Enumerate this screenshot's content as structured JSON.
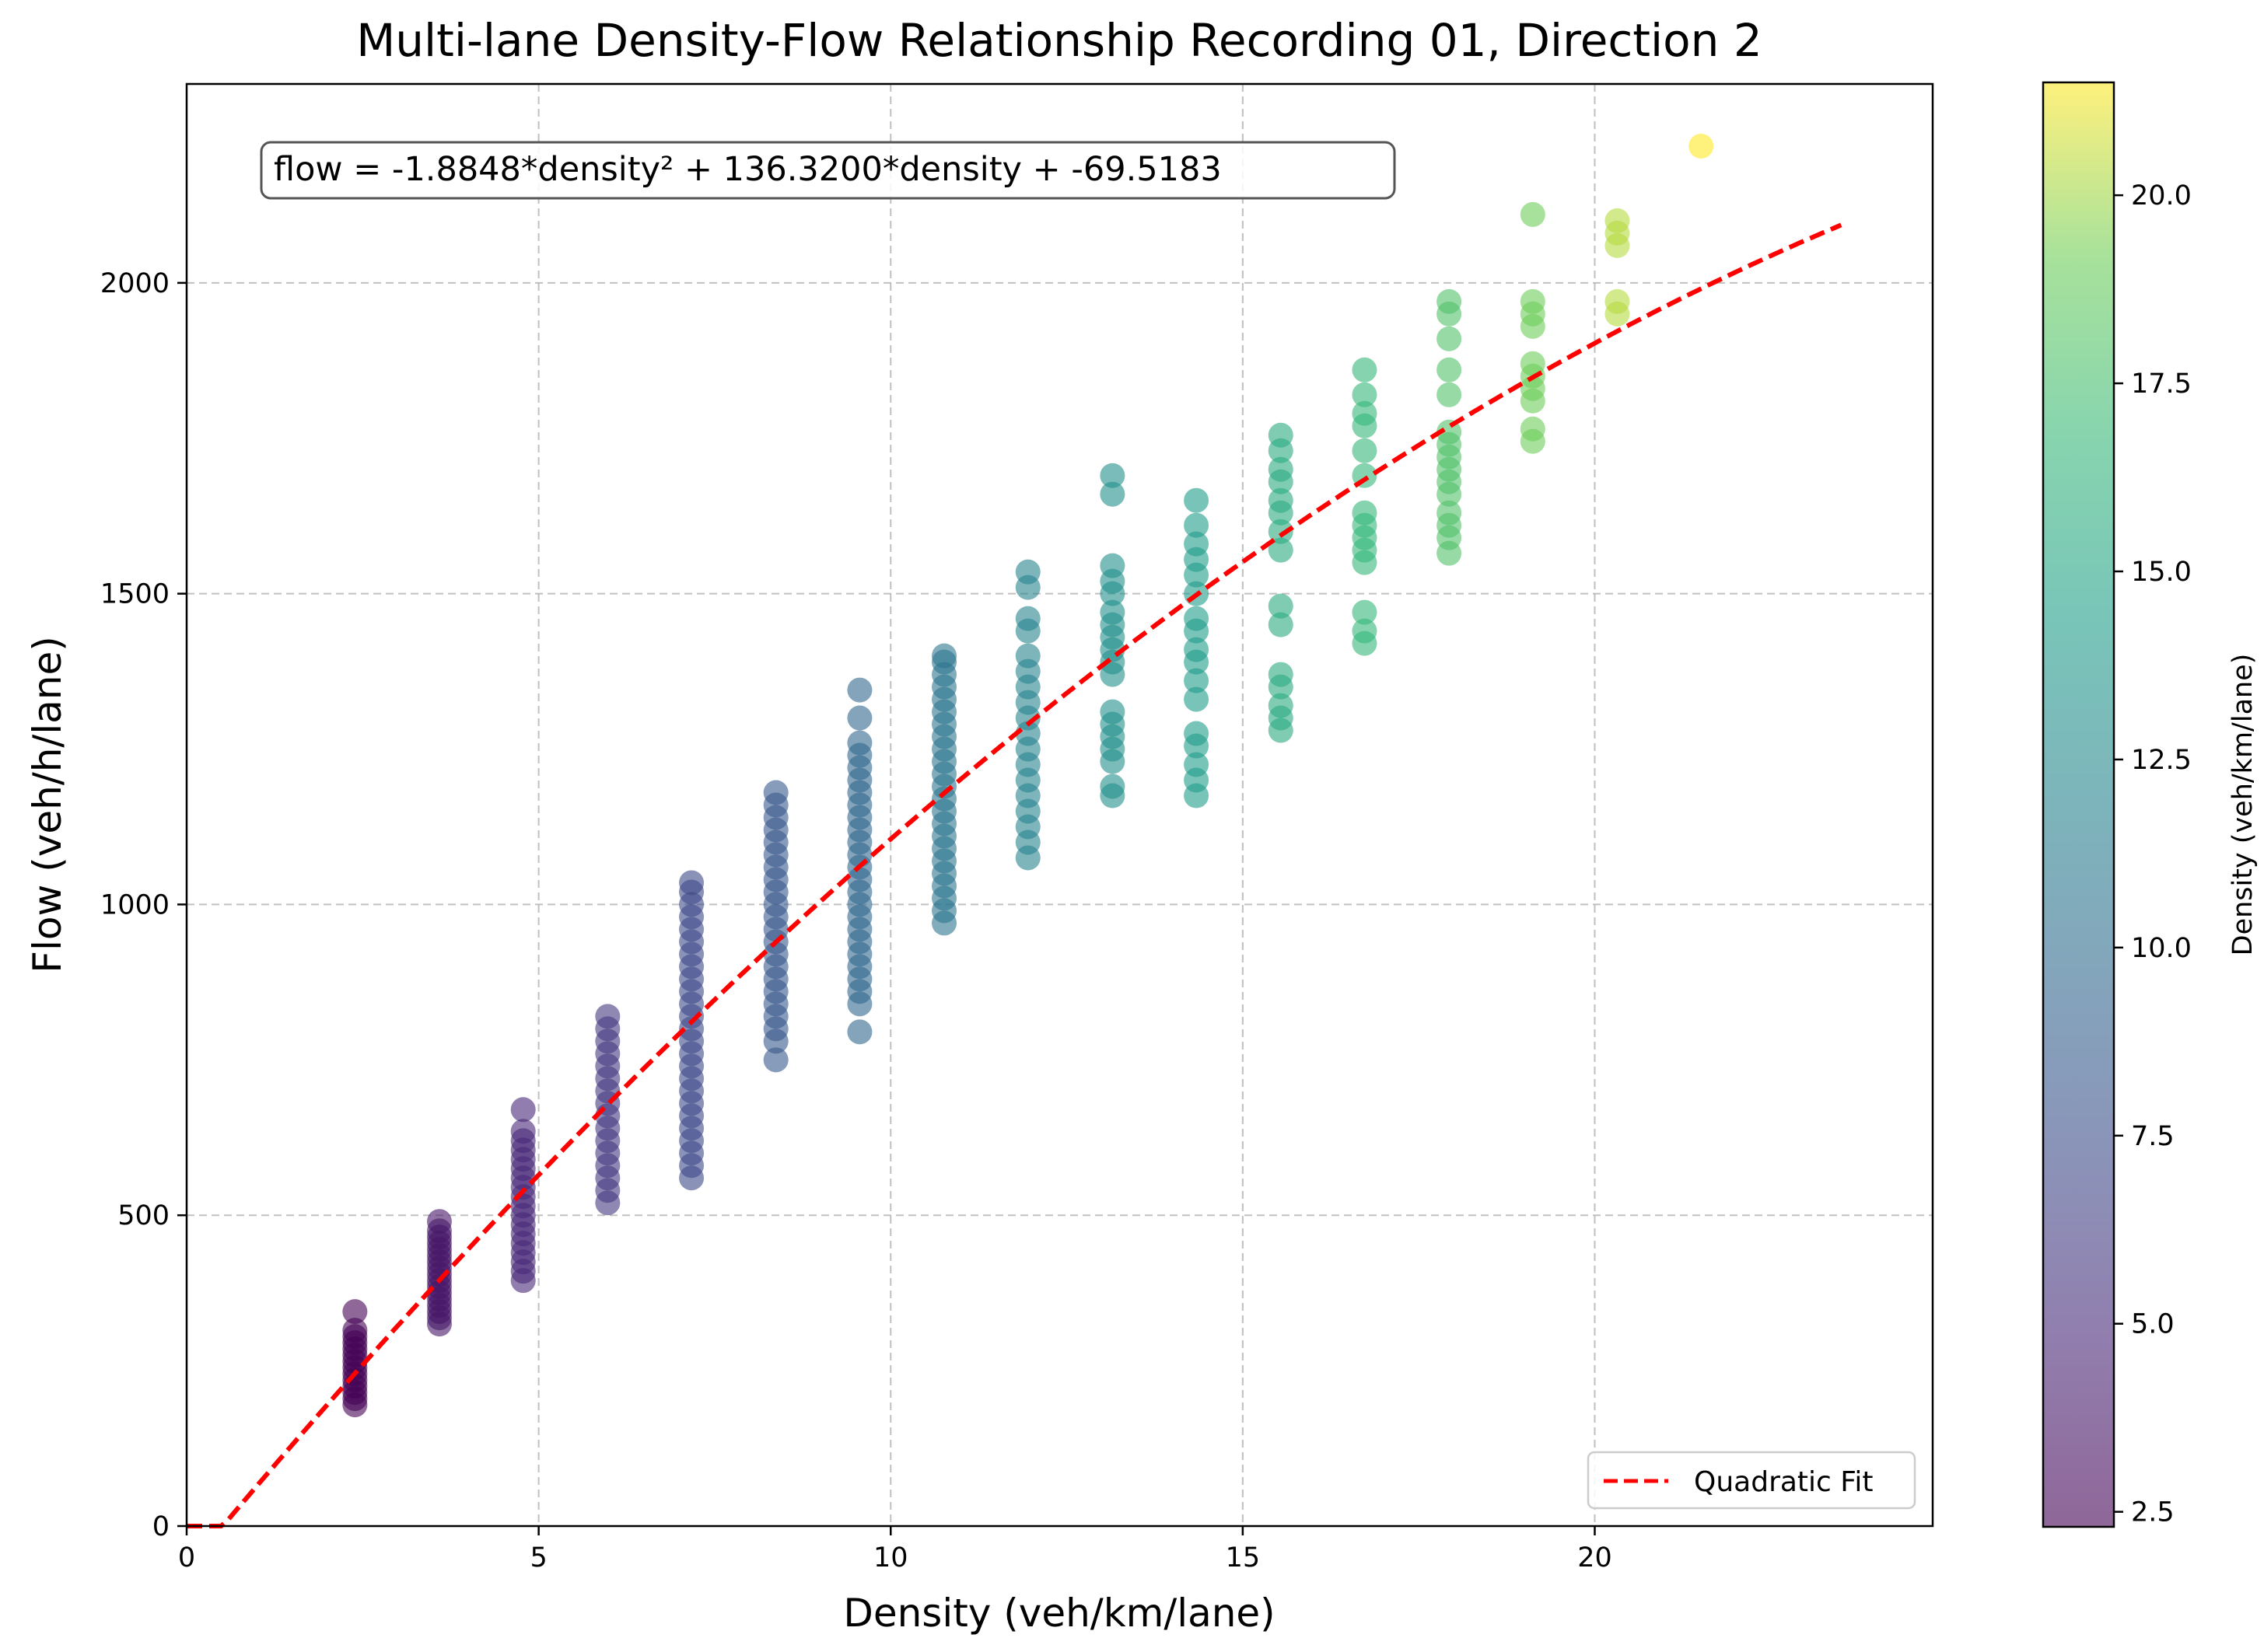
{
  "chart_data": {
    "type": "scatter",
    "title": "Multi-lane Density-Flow Relationship Recording 01, Direction 2",
    "xlabel": "Density (veh/km/lane)",
    "ylabel": "Flow (veh/h/lane)",
    "xlim": [
      0,
      24.8
    ],
    "ylim": [
      0,
      2320
    ],
    "xticks": [
      0,
      5,
      10,
      15,
      20
    ],
    "xtick_labels": [
      "0",
      "5",
      "10",
      "15",
      "20"
    ],
    "yticks": [
      0,
      500,
      1000,
      1500,
      2000
    ],
    "ytick_labels": [
      "0",
      "500",
      "1000",
      "1500",
      "2000"
    ],
    "grid": true,
    "annotation": "flow = -1.8848*density² + 136.3200*density + -69.5183",
    "legend": {
      "position": "lower right",
      "entries": [
        "Quadratic Fit"
      ]
    },
    "colorbar": {
      "label": "Density (veh/km/lane)",
      "min": 2.3,
      "max": 21.5,
      "ticks": [
        2.5,
        5.0,
        7.5,
        10.0,
        12.5,
        15.0,
        17.5,
        20.0
      ],
      "tick_labels": [
        "2.5",
        "5.0",
        "7.5",
        "10.0",
        "12.5",
        "15.0",
        "17.5",
        "20.0"
      ],
      "colormap": "viridis",
      "alpha": 0.6
    },
    "fit": {
      "name": "Quadratic Fit",
      "a": -1.8848,
      "b": 136.32,
      "c": -69.5183,
      "x_range": [
        0,
        23.5
      ],
      "color": "#ff0000",
      "style": "dashed"
    },
    "series": [
      {
        "x": 2.39,
        "y": [
          195,
          205,
          215,
          225,
          235,
          245,
          255,
          265,
          275,
          285,
          295,
          305,
          315,
          345
        ]
      },
      {
        "x": 3.59,
        "y": [
          325,
          335,
          345,
          355,
          365,
          375,
          385,
          395,
          405,
          415,
          425,
          435,
          445,
          455,
          465,
          475,
          490
        ]
      },
      {
        "x": 4.78,
        "y": [
          395,
          410,
          425,
          440,
          455,
          470,
          485,
          500,
          515,
          530,
          545,
          560,
          575,
          590,
          605,
          620,
          635,
          670
        ]
      },
      {
        "x": 5.98,
        "y": [
          520,
          540,
          560,
          580,
          600,
          620,
          640,
          660,
          680,
          700,
          720,
          740,
          760,
          780,
          800,
          820
        ]
      },
      {
        "x": 7.17,
        "y": [
          560,
          580,
          600,
          620,
          640,
          660,
          680,
          700,
          720,
          740,
          760,
          780,
          800,
          820,
          840,
          860,
          880,
          900,
          920,
          940,
          960,
          980,
          1000,
          1020,
          1035
        ]
      },
      {
        "x": 8.37,
        "y": [
          750,
          780,
          800,
          820,
          840,
          860,
          880,
          900,
          920,
          940,
          960,
          980,
          1000,
          1020,
          1040,
          1060,
          1080,
          1100,
          1120,
          1140,
          1160,
          1180
        ]
      },
      {
        "x": 9.56,
        "y": [
          795,
          840,
          860,
          880,
          900,
          920,
          940,
          960,
          980,
          1000,
          1020,
          1040,
          1060,
          1080,
          1100,
          1120,
          1140,
          1160,
          1180,
          1200,
          1220,
          1240,
          1260,
          1300,
          1345
        ]
      },
      {
        "x": 10.76,
        "y": [
          970,
          990,
          1010,
          1030,
          1050,
          1070,
          1090,
          1110,
          1130,
          1150,
          1170,
          1190,
          1210,
          1230,
          1250,
          1270,
          1290,
          1310,
          1330,
          1350,
          1370,
          1390,
          1400
        ]
      },
      {
        "x": 11.95,
        "y": [
          1075,
          1100,
          1125,
          1150,
          1175,
          1200,
          1225,
          1250,
          1275,
          1300,
          1325,
          1350,
          1375,
          1400,
          1440,
          1460,
          1510,
          1535
        ]
      },
      {
        "x": 13.15,
        "y": [
          1175,
          1190,
          1230,
          1250,
          1270,
          1290,
          1310,
          1370,
          1390,
          1410,
          1430,
          1450,
          1470,
          1500,
          1520,
          1545,
          1660,
          1690
        ]
      },
      {
        "x": 14.34,
        "y": [
          1175,
          1200,
          1225,
          1255,
          1275,
          1330,
          1360,
          1390,
          1410,
          1440,
          1460,
          1500,
          1530,
          1555,
          1580,
          1610,
          1650
        ]
      },
      {
        "x": 15.54,
        "y": [
          1280,
          1300,
          1320,
          1350,
          1370,
          1450,
          1480,
          1570,
          1600,
          1630,
          1650,
          1680,
          1700,
          1730,
          1755
        ]
      },
      {
        "x": 16.73,
        "y": [
          1420,
          1440,
          1470,
          1550,
          1570,
          1590,
          1610,
          1630,
          1690,
          1730,
          1770,
          1790,
          1820,
          1860
        ]
      },
      {
        "x": 17.93,
        "y": [
          1565,
          1590,
          1610,
          1630,
          1660,
          1680,
          1700,
          1720,
          1740,
          1760,
          1820,
          1860,
          1910,
          1950,
          1970
        ]
      },
      {
        "x": 19.12,
        "y": [
          1745,
          1765,
          1810,
          1830,
          1850,
          1870,
          1930,
          1950,
          1970,
          2110
        ]
      },
      {
        "x": 20.32,
        "y": [
          1950,
          1970,
          2060,
          2080,
          2100
        ]
      },
      {
        "x": 21.51,
        "y": [
          2220
        ]
      }
    ]
  }
}
